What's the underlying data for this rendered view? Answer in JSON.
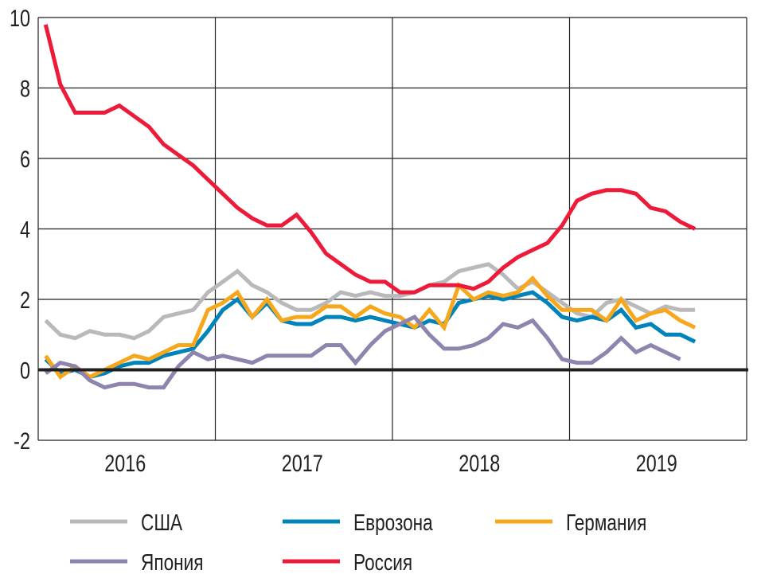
{
  "chart_data": {
    "type": "line",
    "title": "",
    "xlabel": "",
    "ylabel": "",
    "ylim": [
      -2,
      10
    ],
    "yticks": [
      "10",
      "8",
      "6",
      "4",
      "2",
      "0",
      "-2"
    ],
    "ytick_values": [
      10,
      8,
      6,
      4,
      2,
      0,
      -2
    ],
    "xticks": [
      "2016",
      "2017",
      "2018",
      "2019"
    ],
    "x_start": "2016-01",
    "x_frequency": "monthly",
    "grid": true,
    "legend_position": "bottom",
    "series": [
      {
        "name": "США",
        "color": "#b9b9bb",
        "values": [
          1.4,
          1.0,
          0.9,
          1.1,
          1.0,
          1.0,
          0.9,
          1.1,
          1.5,
          1.6,
          1.7,
          2.2,
          2.5,
          2.8,
          2.4,
          2.2,
          1.9,
          1.7,
          1.7,
          1.9,
          2.2,
          2.1,
          2.2,
          2.1,
          2.1,
          2.2,
          2.4,
          2.5,
          2.8,
          2.9,
          3.0,
          2.7,
          2.3,
          2.5,
          2.2,
          1.9,
          1.6,
          1.5,
          1.9,
          2.0,
          1.8,
          1.6,
          1.8,
          1.7,
          1.7
        ]
      },
      {
        "name": "Еврозона",
        "color": "#0083bb",
        "values": [
          0.3,
          -0.1,
          0.0,
          -0.2,
          -0.1,
          0.1,
          0.2,
          0.2,
          0.4,
          0.5,
          0.6,
          1.1,
          1.7,
          2.0,
          1.5,
          1.9,
          1.4,
          1.3,
          1.3,
          1.5,
          1.5,
          1.4,
          1.5,
          1.4,
          1.3,
          1.2,
          1.4,
          1.3,
          1.9,
          2.0,
          2.1,
          2.0,
          2.1,
          2.2,
          1.9,
          1.5,
          1.4,
          1.5,
          1.4,
          1.7,
          1.2,
          1.3,
          1.0,
          1.0,
          0.8
        ]
      },
      {
        "name": "Германия",
        "color": "#f6a71c",
        "values": [
          0.4,
          -0.2,
          0.1,
          -0.2,
          0.0,
          0.2,
          0.4,
          0.3,
          0.5,
          0.7,
          0.7,
          1.7,
          1.9,
          2.2,
          1.5,
          2.0,
          1.4,
          1.5,
          1.5,
          1.8,
          1.8,
          1.5,
          1.8,
          1.6,
          1.5,
          1.2,
          1.7,
          1.2,
          2.4,
          2.0,
          2.2,
          2.1,
          2.2,
          2.6,
          2.1,
          1.7,
          1.7,
          1.7,
          1.4,
          2.0,
          1.4,
          1.6,
          1.7,
          1.4,
          1.2
        ]
      },
      {
        "name": "Япония",
        "color": "#8f84ae",
        "values": [
          -0.1,
          0.2,
          0.1,
          -0.3,
          -0.5,
          -0.4,
          -0.4,
          -0.5,
          -0.5,
          0.1,
          0.5,
          0.3,
          0.4,
          0.3,
          0.2,
          0.4,
          0.4,
          0.4,
          0.4,
          0.7,
          0.7,
          0.2,
          0.7,
          1.1,
          1.3,
          1.5,
          1.0,
          0.6,
          0.6,
          0.7,
          0.9,
          1.3,
          1.2,
          1.4,
          0.9,
          0.3,
          0.2,
          0.2,
          0.5,
          0.9,
          0.5,
          0.7,
          0.5,
          0.3
        ]
      },
      {
        "name": "Россия",
        "color": "#ec1b3a",
        "values": [
          9.8,
          8.1,
          7.3,
          7.3,
          7.3,
          7.5,
          7.2,
          6.9,
          6.4,
          6.1,
          5.8,
          5.4,
          5.0,
          4.6,
          4.3,
          4.1,
          4.1,
          4.4,
          3.9,
          3.3,
          3.0,
          2.7,
          2.5,
          2.5,
          2.2,
          2.2,
          2.4,
          2.4,
          2.4,
          2.3,
          2.5,
          2.9,
          3.2,
          3.4,
          3.6,
          4.1,
          4.8,
          5.0,
          5.1,
          5.1,
          5.0,
          4.6,
          4.5,
          4.2,
          4.0
        ]
      }
    ]
  }
}
